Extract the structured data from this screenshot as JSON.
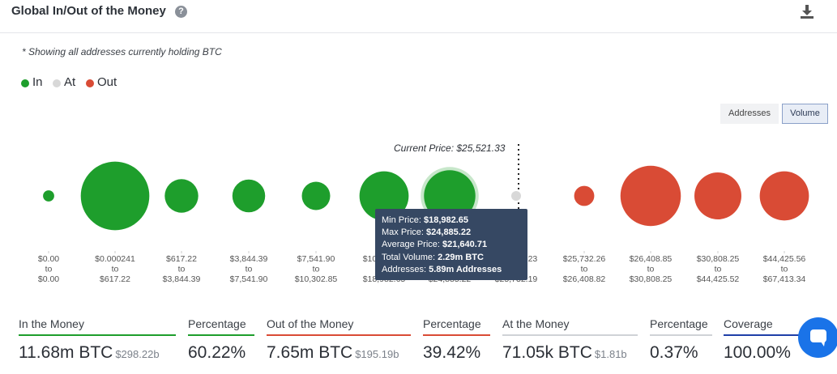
{
  "header": {
    "title": "Global In/Out of the Money"
  },
  "note": "* Showing all addresses currently holding BTC",
  "legend": [
    {
      "label": "In",
      "color": "#1e9e2c"
    },
    {
      "label": "At",
      "color": "#d8d8d8"
    },
    {
      "label": "Out",
      "color": "#d94b35"
    }
  ],
  "toggles": {
    "addresses": "Addresses",
    "volume": "Volume",
    "active": "Volume"
  },
  "current_price_label": "Current Price: $25,521.33",
  "tooltip": {
    "rows": [
      {
        "label": "Min Price:",
        "value": "$18,982.65"
      },
      {
        "label": "Max Price:",
        "value": "$24,885.22"
      },
      {
        "label": "Average Price:",
        "value": "$21,640.71"
      },
      {
        "label": "Total Volume:",
        "value": "2.29m BTC"
      },
      {
        "label": "Addresses:",
        "value": "5.89m Addresses"
      }
    ]
  },
  "chart_data": {
    "type": "bubble",
    "size_metric": "Volume",
    "current_price": "$25,521.33",
    "buckets": [
      {
        "min": "$0.00",
        "max": "$0.00",
        "status": "In",
        "size": 0.15
      },
      {
        "min": "$0.000241",
        "max": "$617.22",
        "status": "In",
        "size": 0.92
      },
      {
        "min": "$617.22",
        "max": "$3,844.39",
        "status": "In",
        "size": 0.45
      },
      {
        "min": "$3,844.39",
        "max": "$7,541.90",
        "status": "In",
        "size": 0.44
      },
      {
        "min": "$7,541.90",
        "max": "$10,302.85",
        "status": "In",
        "size": 0.38
      },
      {
        "min": "$10,302.85",
        "max": "$18,982.65",
        "status": "In",
        "size": 0.66
      },
      {
        "min": "$18,982.65",
        "max": "$24,885.22",
        "status": "In",
        "size": 0.69,
        "highlighted": true
      },
      {
        "min": "$24,885.23",
        "max": "$25,732.19",
        "status": "At",
        "size": 0.04
      },
      {
        "min": "$25,732.26",
        "max": "$26,408.82",
        "status": "Out",
        "size": 0.27
      },
      {
        "min": "$26,408.85",
        "max": "$30,808.25",
        "status": "Out",
        "size": 0.81
      },
      {
        "min": "$30,808.25",
        "max": "$44,425.52",
        "status": "Out",
        "size": 0.63
      },
      {
        "min": "$44,425.56",
        "max": "$67,413.34",
        "status": "Out",
        "size": 0.66
      }
    ],
    "colors": {
      "In": "#1e9e2c",
      "At": "#d8d8d8",
      "Out": "#d94b35"
    },
    "range_connector": "to"
  },
  "stats": [
    {
      "label": "In the Money",
      "value": "11.68m BTC",
      "sub": "$298.22b",
      "color": "#1e9e2c"
    },
    {
      "label": "Percentage",
      "value": "60.22%",
      "sub": "",
      "color": "#1e9e2c"
    },
    {
      "label": "Out of the Money",
      "value": "7.65m BTC",
      "sub": "$195.19b",
      "color": "#d94b35"
    },
    {
      "label": "Percentage",
      "value": "39.42%",
      "sub": "",
      "color": "#d94b35"
    },
    {
      "label": "At the Money",
      "value": "71.05k BTC",
      "sub": "$1.81b",
      "color": "#cfd2d6"
    },
    {
      "label": "Percentage",
      "value": "0.37%",
      "sub": "",
      "color": "#cfd2d6"
    },
    {
      "label": "Coverage",
      "value": "100.00%",
      "sub": "",
      "color": "#1f3fa8"
    }
  ]
}
